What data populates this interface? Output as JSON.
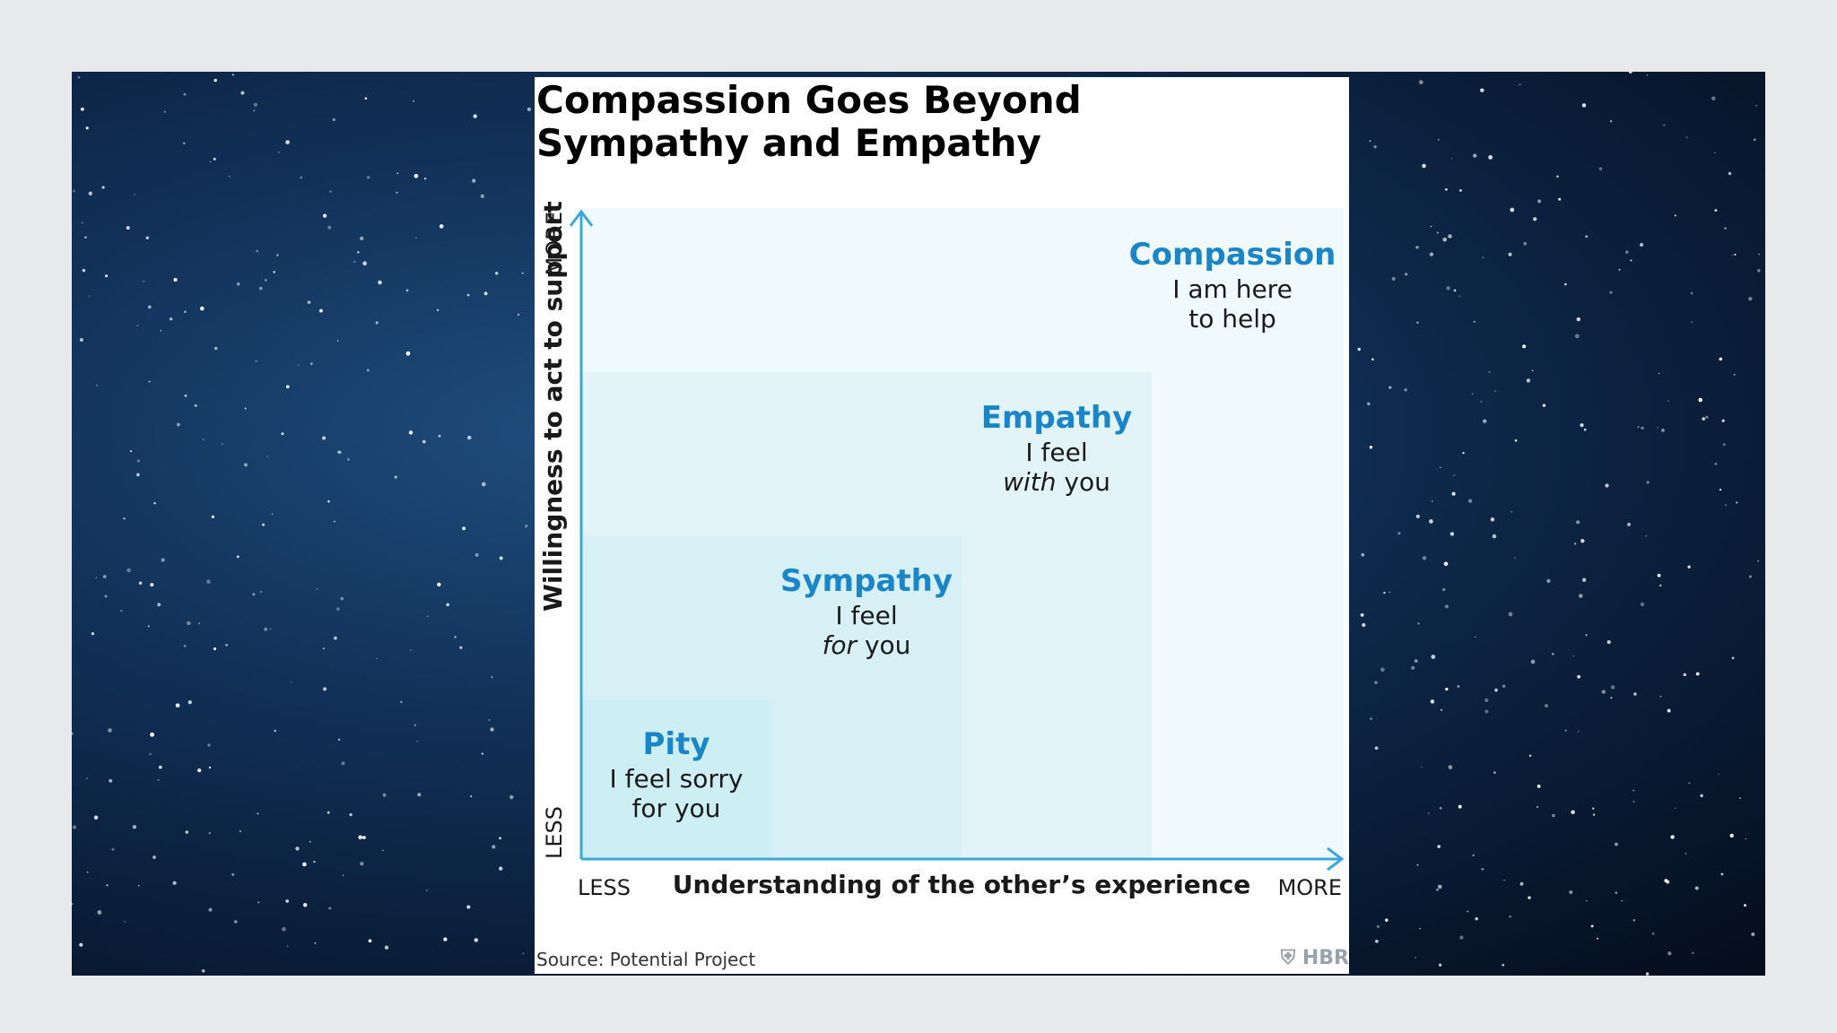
{
  "card": {
    "title_line1": "Compassion Goes Beyond",
    "title_line2": "Sympathy and Empathy",
    "source": "Source: Potential Project",
    "brand": "HBR"
  },
  "axes": {
    "x_label": "Understanding of the other’s experience",
    "x_less": "LESS",
    "x_more": "MORE",
    "y_label": "Willingness to act to support",
    "y_less": "LESS",
    "y_more": "MORE"
  },
  "levels": [
    {
      "name": "Pity",
      "line1": "I feel sorry",
      "line2_em": "",
      "line2": "for you",
      "color": "#cdeef3"
    },
    {
      "name": "Sympathy",
      "line1": "I feel",
      "line2_em": "for",
      "line2": " you",
      "color": "#d6f0f6"
    },
    {
      "name": "Empathy",
      "line1": "I feel",
      "line2_em": "with",
      "line2": " you",
      "color": "#e3f4f9"
    },
    {
      "name": "Compassion",
      "line1": "I am here",
      "line2_em": "",
      "line2": "to help",
      "color": "#f0f9fc"
    }
  ],
  "colors": {
    "axis": "#3aa8dc",
    "heading": "#1a86c8"
  }
}
